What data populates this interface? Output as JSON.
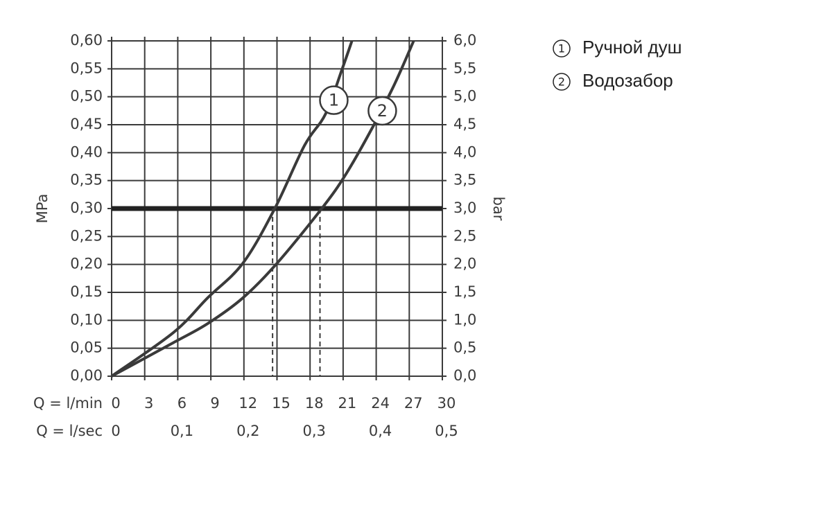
{
  "chart_data": {
    "type": "line",
    "x_label": "Q = l/min",
    "x2_label": "Q = l/sec",
    "y_label": "MPa",
    "y2_label": "bar",
    "xlim": [
      0,
      30
    ],
    "xticks": [
      0,
      3,
      6,
      9,
      12,
      15,
      18,
      21,
      24,
      27,
      30
    ],
    "x2lim": [
      0,
      0.5
    ],
    "x2ticks": [
      0,
      {
        "value": 0.1,
        "label": "0,1"
      },
      {
        "value": 0.2,
        "label": "0,2"
      },
      {
        "value": 0.3,
        "label": "0,3"
      },
      {
        "value": 0.4,
        "label": "0,4"
      },
      {
        "value": 0.5,
        "label": "0,5"
      }
    ],
    "ylim": [
      0,
      0.6
    ],
    "yticks": [
      {
        "value": 0,
        "label": "0,00"
      },
      {
        "value": 0.05,
        "label": "0,05"
      },
      {
        "value": 0.1,
        "label": "0,10"
      },
      {
        "value": 0.15,
        "label": "0,15"
      },
      {
        "value": 0.2,
        "label": "0,20"
      },
      {
        "value": 0.25,
        "label": "0,25"
      },
      {
        "value": 0.3,
        "label": "0,30"
      },
      {
        "value": 0.35,
        "label": "0,35"
      },
      {
        "value": 0.4,
        "label": "0,40"
      },
      {
        "value": 0.45,
        "label": "0,45"
      },
      {
        "value": 0.5,
        "label": "0,50"
      },
      {
        "value": 0.55,
        "label": "0,55"
      },
      {
        "value": 0.6,
        "label": "0,60"
      }
    ],
    "y2lim": [
      0,
      6
    ],
    "y2ticks": [
      {
        "value": 0,
        "label": "0,0"
      },
      {
        "value": 0.5,
        "label": "0,5"
      },
      {
        "value": 1,
        "label": "1,0"
      },
      {
        "value": 1.5,
        "label": "1,5"
      },
      {
        "value": 2,
        "label": "2,0"
      },
      {
        "value": 2.5,
        "label": "2,5"
      },
      {
        "value": 3,
        "label": "3,0"
      },
      {
        "value": 3.5,
        "label": "3,5"
      },
      {
        "value": 4,
        "label": "4,0"
      },
      {
        "value": 4.5,
        "label": "4,5"
      },
      {
        "value": 5,
        "label": "5,0"
      },
      {
        "value": 5.5,
        "label": "5,5"
      },
      {
        "value": 6,
        "label": "6,0"
      }
    ],
    "grid": true,
    "reference_line": {
      "y": 0.3,
      "x_drops": [
        14.6,
        18.9
      ]
    },
    "series": [
      {
        "name": "Ручной душ",
        "label": "1",
        "color": "#3a3a3a",
        "x": [
          0,
          5.6,
          8.7,
          11.9,
          14.8,
          17.5,
          19.4,
          20.9,
          21.8
        ],
        "values": [
          0,
          0.078,
          0.14,
          0.202,
          0.3,
          0.413,
          0.469,
          0.549,
          0.6
        ]
      },
      {
        "name": "Водозабор",
        "label": "2",
        "color": "#3a3a3a",
        "x": [
          0,
          5.6,
          8.7,
          11.9,
          15.0,
          19.1,
          21.3,
          23.8,
          25.7,
          27.4
        ],
        "values": [
          0,
          0.06,
          0.094,
          0.14,
          0.202,
          0.301,
          0.363,
          0.45,
          0.524,
          0.6
        ]
      }
    ]
  }
}
